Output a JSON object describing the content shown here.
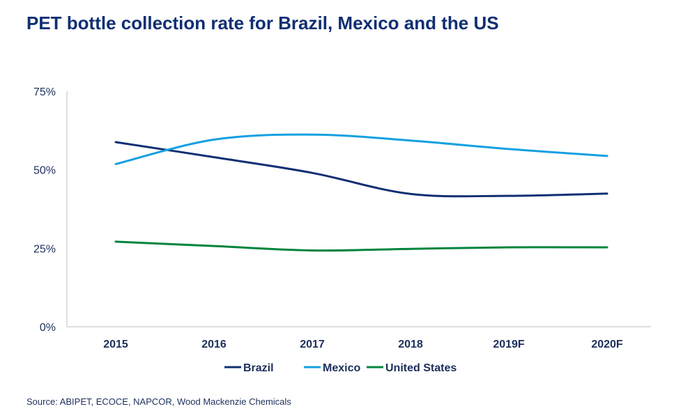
{
  "title": "PET bottle collection rate for Brazil, Mexico and the US",
  "source": "Source: ABIPET, ECOCE, NAPCOR, Wood Mackenzie Chemicals",
  "chart_data": {
    "type": "line",
    "title": "PET bottle collection rate for Brazil, Mexico and the US",
    "categories": [
      "2015",
      "2016",
      "2017",
      "2018",
      "2019F",
      "2020F"
    ],
    "y_ticks": [
      "0%",
      "25%",
      "50%",
      "75%"
    ],
    "ylim": [
      0,
      75
    ],
    "y_unit": "%",
    "grid": false,
    "smooth": true,
    "legend_position": "bottom",
    "series": [
      {
        "name": "Brazil",
        "color": "#0f2f73",
        "values": [
          58.8,
          54.0,
          49.0,
          42.3,
          41.7,
          42.4
        ]
      },
      {
        "name": "Mexico",
        "color": "#14a0e0",
        "values": [
          51.8,
          59.6,
          61.2,
          59.3,
          56.6,
          54.4
        ]
      },
      {
        "name": "United States",
        "color": "#00843d",
        "values": [
          27.1,
          25.7,
          24.3,
          24.8,
          25.3,
          25.3
        ]
      }
    ]
  }
}
